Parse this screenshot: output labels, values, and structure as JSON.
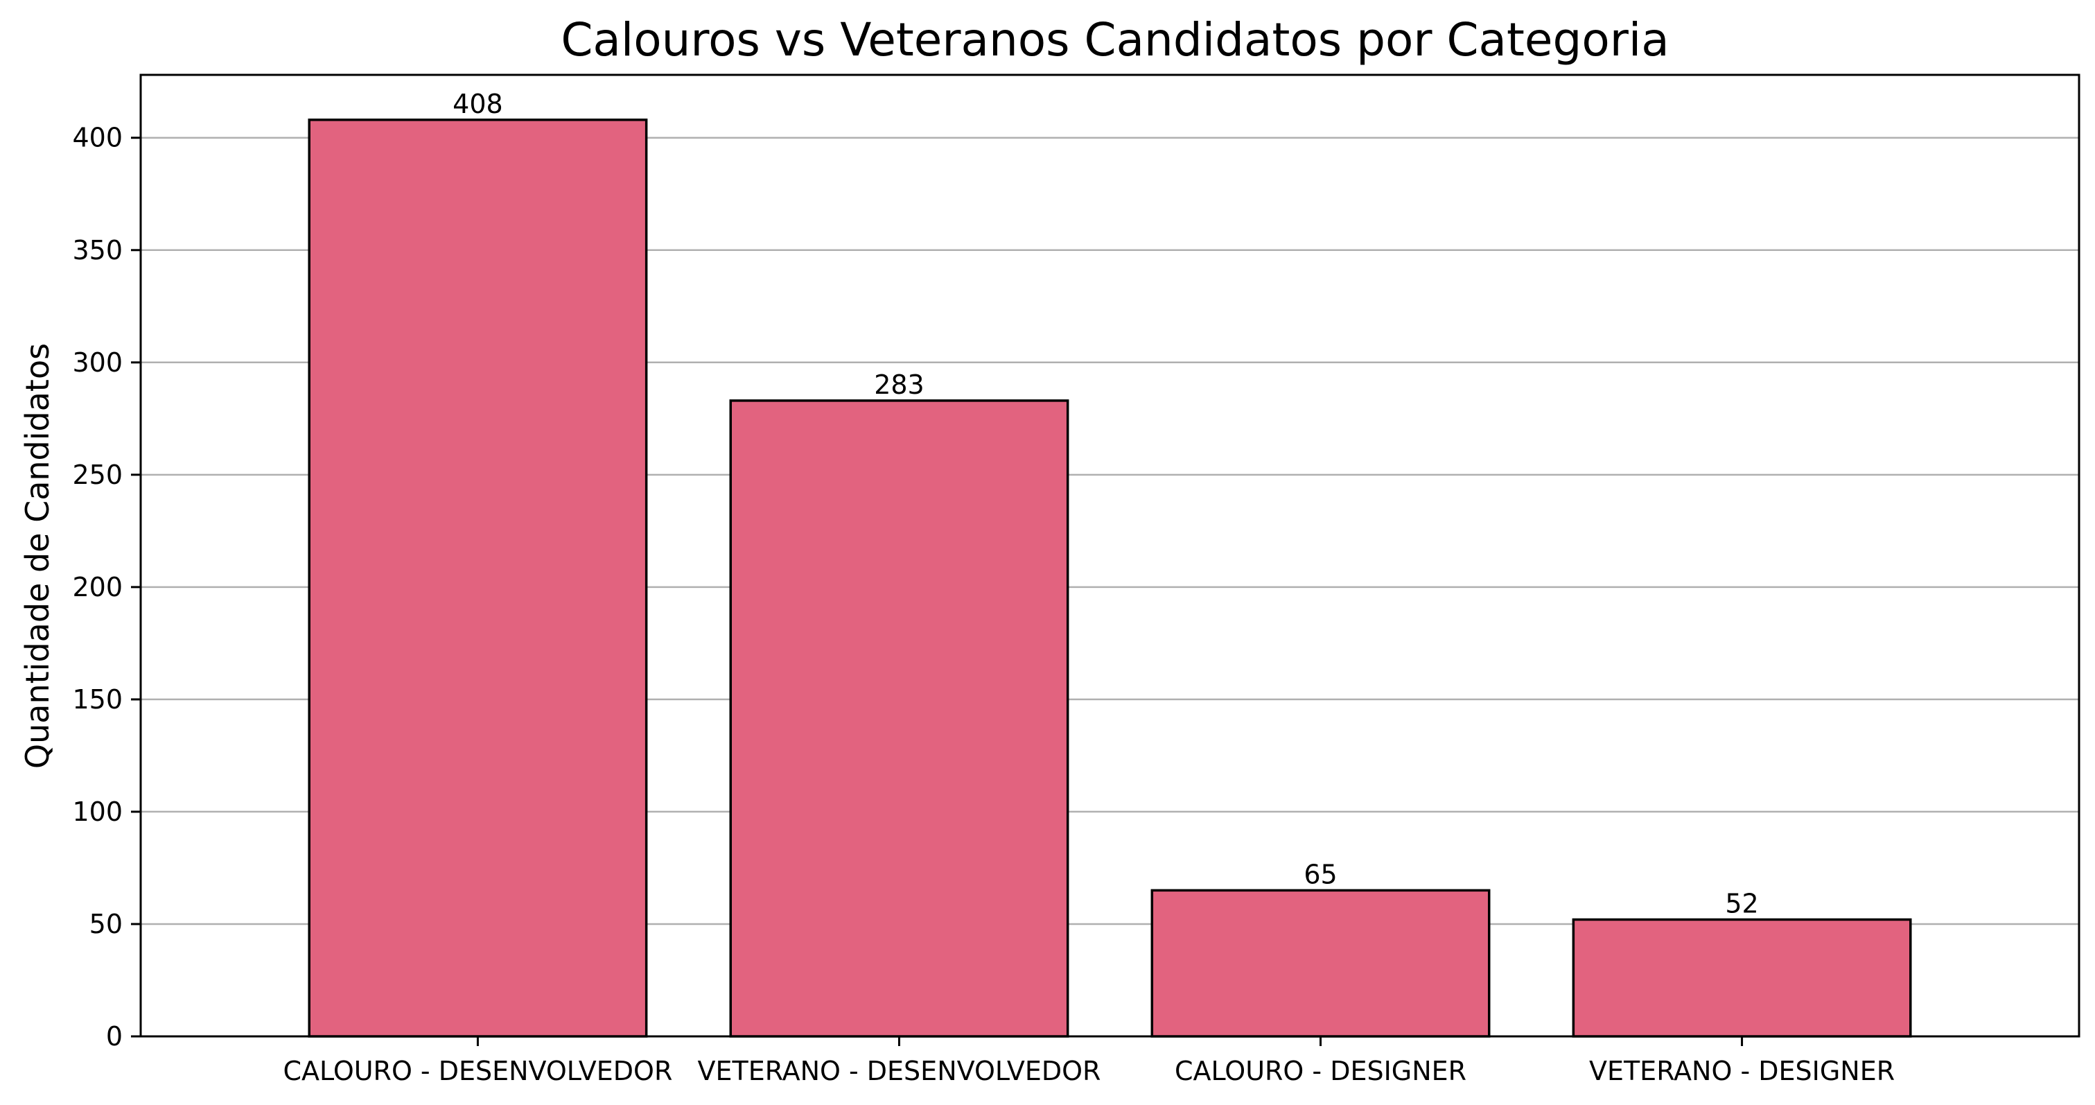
{
  "chart_data": {
    "type": "bar",
    "title": "Calouros vs Veteranos Candidatos por Categoria",
    "xlabel": "",
    "ylabel": "Quantidade de Candidatos",
    "categories": [
      "CALOURO - DESENVOLVEDOR",
      "VETERANO - DESENVOLVEDOR",
      "CALOURO - DESIGNER",
      "VETERANO - DESIGNER"
    ],
    "values": [
      408,
      283,
      65,
      52
    ],
    "data_labels": [
      "408",
      "283",
      "65",
      "52"
    ],
    "ylim": [
      0,
      428
    ],
    "yticks": [
      0,
      50,
      100,
      150,
      200,
      250,
      300,
      350,
      400
    ],
    "grid": "horizontal",
    "legend": "none",
    "colors": {
      "bar_fill": "#e2637f",
      "bar_edge": "#000000",
      "grid": "#b0b0b0",
      "axes": "#000000"
    }
  }
}
